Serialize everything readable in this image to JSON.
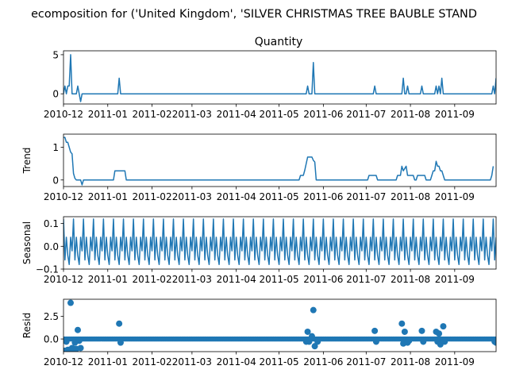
{
  "suptitle": "ecomposition for ('United Kingdom', 'SILVER CHRISTMAS TREE BAUBLE STAND",
  "colors": {
    "line": "#1f77b4",
    "axis": "#000000",
    "background": "#ffffff"
  },
  "chart_data": [
    {
      "type": "line",
      "title": "Quantity",
      "ylabel": "",
      "ylim": [
        -1.3,
        5.5
      ],
      "yticks": [
        0,
        5
      ],
      "ytick_labels": [
        "0",
        "5"
      ],
      "x_range": [
        "2010-12-01",
        "2011-09-30"
      ],
      "xtick_labels": [
        "2010-12",
        "2011-01",
        "2011-02",
        "2011-03",
        "2011-04",
        "2011-05",
        "2011-06",
        "2011-07",
        "2011-08",
        "2011-09"
      ],
      "series": [
        {
          "x": [
            "2010-12-01",
            "2010-12-02",
            "2010-12-03",
            "2010-12-04",
            "2010-12-05",
            "2010-12-06",
            "2010-12-07",
            "2010-12-08",
            "2010-12-09",
            "2010-12-10",
            "2010-12-11",
            "2010-12-12",
            "2010-12-13",
            "2010-12-14",
            "2010-12-15",
            "2010-12-16",
            "2011-01-08",
            "2011-01-09",
            "2011-01-10",
            "2011-05-20",
            "2011-05-21",
            "2011-05-22",
            "2011-05-23",
            "2011-05-24",
            "2011-05-25",
            "2011-05-26",
            "2011-07-06",
            "2011-07-07",
            "2011-07-08",
            "2011-07-26",
            "2011-07-27",
            "2011-07-28",
            "2011-07-29",
            "2011-07-30",
            "2011-07-31",
            "2011-08-01",
            "2011-08-08",
            "2011-08-09",
            "2011-08-10",
            "2011-08-18",
            "2011-08-19",
            "2011-08-20",
            "2011-08-21",
            "2011-08-22",
            "2011-08-23",
            "2011-08-24",
            "2011-08-25",
            "2011-08-26",
            "2011-09-27",
            "2011-09-28",
            "2011-09-29",
            "2011-09-30"
          ],
          "y": [
            0,
            1,
            0,
            1,
            1,
            5,
            0,
            0,
            0,
            0,
            1,
            0,
            -1,
            0,
            0,
            0,
            0,
            2,
            0,
            0,
            1,
            0,
            0,
            0,
            4,
            0,
            0,
            1,
            0,
            0,
            2,
            0,
            0,
            1,
            0,
            0,
            0,
            1,
            0,
            0,
            1,
            0,
            1,
            0,
            2,
            0,
            0,
            0,
            0,
            1,
            0,
            2
          ]
        }
      ]
    },
    {
      "type": "line",
      "title": "",
      "ylabel": "Trend",
      "ylim": [
        -0.2,
        1.4
      ],
      "yticks": [
        0,
        1
      ],
      "ytick_labels": [
        "0",
        "1"
      ],
      "x_range": [
        "2010-12-01",
        "2011-09-30"
      ],
      "xtick_labels": [
        "2010-12",
        "2011-01",
        "2011-02",
        "2011-03",
        "2011-04",
        "2011-05",
        "2011-06",
        "2011-07",
        "2011-08",
        "2011-09"
      ],
      "series": [
        {
          "x": [
            "2010-12-01",
            "2010-12-02",
            "2010-12-03",
            "2010-12-04",
            "2010-12-05",
            "2010-12-06",
            "2010-12-07",
            "2010-12-08",
            "2010-12-09",
            "2010-12-10",
            "2010-12-11",
            "2010-12-12",
            "2010-12-13",
            "2010-12-14",
            "2010-12-15",
            "2010-12-16",
            "2011-01-05",
            "2011-01-06",
            "2011-01-13",
            "2011-01-14",
            "2011-05-15",
            "2011-05-16",
            "2011-05-18",
            "2011-05-19",
            "2011-05-21",
            "2011-05-22",
            "2011-05-24",
            "2011-05-25",
            "2011-05-26",
            "2011-05-27",
            "2011-07-02",
            "2011-07-03",
            "2011-07-08",
            "2011-07-09",
            "2011-07-22",
            "2011-07-23",
            "2011-07-25",
            "2011-07-26",
            "2011-07-27",
            "2011-07-29",
            "2011-07-30",
            "2011-08-03",
            "2011-08-04",
            "2011-08-05",
            "2011-08-06",
            "2011-08-11",
            "2011-08-12",
            "2011-08-15",
            "2011-08-16",
            "2011-08-17",
            "2011-08-18",
            "2011-08-19",
            "2011-08-20",
            "2011-08-21",
            "2011-08-22",
            "2011-08-23",
            "2011-08-24",
            "2011-08-25",
            "2011-08-26",
            "2011-09-26",
            "2011-09-27",
            "2011-09-28"
          ],
          "y": [
            1.3,
            1.3,
            1.15,
            1.15,
            1.0,
            0.85,
            0.8,
            0.2,
            0.05,
            0.0,
            0.0,
            0.0,
            0.0,
            -0.15,
            0.0,
            0.0,
            0.0,
            0.28,
            0.28,
            0.0,
            0.0,
            0.14,
            0.14,
            0.3,
            0.7,
            0.7,
            0.7,
            0.6,
            0.55,
            0.0,
            0.0,
            0.14,
            0.14,
            0.0,
            0.0,
            0.14,
            0.14,
            0.42,
            0.28,
            0.42,
            0.14,
            0.14,
            0.0,
            0.0,
            0.14,
            0.14,
            0.0,
            0.0,
            0.14,
            0.28,
            0.28,
            0.57,
            0.42,
            0.42,
            0.28,
            0.28,
            0.14,
            0.0,
            0.0,
            0.0,
            0.14,
            0.42
          ]
        }
      ]
    },
    {
      "type": "line",
      "title": "",
      "ylabel": "Seasonal",
      "ylim": [
        -0.1,
        0.13
      ],
      "yticks": [
        -0.1,
        0.0,
        0.1
      ],
      "ytick_labels": [
        "−0.1",
        "0.0",
        "0.1"
      ],
      "x_range": [
        "2010-12-01",
        "2011-09-30"
      ],
      "xtick_labels": [
        "2010-12",
        "2011-01",
        "2011-02",
        "2011-03",
        "2011-04",
        "2011-05",
        "2011-06",
        "2011-07",
        "2011-08",
        "2011-09"
      ],
      "period_days": 7,
      "period_pattern": [
        0.12,
        -0.06,
        0.04,
        -0.04,
        -0.08,
        0.04,
        -0.02
      ],
      "series": []
    },
    {
      "type": "scatter",
      "title": "",
      "ylabel": "Resid",
      "ylim": [
        -1.4,
        4.4
      ],
      "yticks": [
        0.0,
        2.5
      ],
      "ytick_labels": [
        "0.0",
        "2.5"
      ],
      "x_range": [
        "2010-12-01",
        "2011-09-30"
      ],
      "xtick_labels": [
        "2010-12",
        "2011-01",
        "2011-02",
        "2011-03",
        "2011-04",
        "2011-05",
        "2011-06",
        "2011-07",
        "2011-08",
        "2011-09"
      ],
      "baseline": 0,
      "series": [
        {
          "x": [
            "2010-12-01",
            "2010-12-02",
            "2010-12-03",
            "2010-12-04",
            "2010-12-05",
            "2010-12-06",
            "2010-12-07",
            "2010-12-08",
            "2010-12-09",
            "2010-12-10",
            "2010-12-11",
            "2010-12-12",
            "2010-12-13",
            "2011-01-09",
            "2011-01-10",
            "2011-05-20",
            "2011-05-21",
            "2011-05-22",
            "2011-05-24",
            "2011-05-25",
            "2011-05-26",
            "2011-05-28",
            "2011-07-07",
            "2011-07-08",
            "2011-07-26",
            "2011-07-27",
            "2011-07-28",
            "2011-07-30",
            "2011-07-31",
            "2011-08-09",
            "2011-08-10",
            "2011-08-19",
            "2011-08-20",
            "2011-08-21",
            "2011-08-22",
            "2011-08-24",
            "2011-08-25",
            "2011-09-29",
            "2011-09-30"
          ],
          "y": [
            -1.3,
            -1.3,
            -0.3,
            -1.2,
            -1.2,
            4.0,
            -1.0,
            -1.1,
            -0.4,
            -1.1,
            1.0,
            -0.2,
            -1.0,
            1.7,
            -0.4,
            -0.3,
            0.8,
            -0.3,
            0.3,
            3.2,
            -0.8,
            -0.3,
            0.9,
            -0.3,
            1.7,
            -0.5,
            0.8,
            -0.4,
            -0.2,
            0.9,
            -0.3,
            0.8,
            -0.3,
            0.6,
            -0.6,
            1.4,
            -0.3,
            -0.3,
            -0.4
          ]
        }
      ]
    }
  ]
}
